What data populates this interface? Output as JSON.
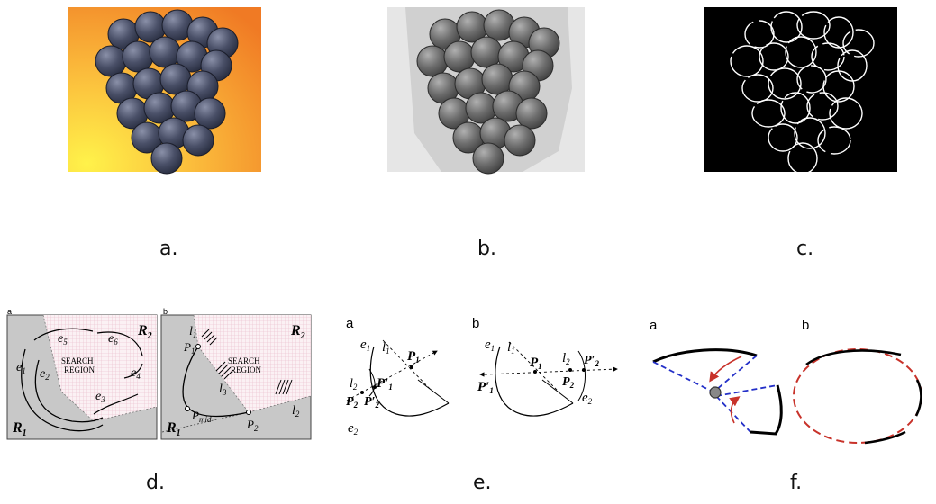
{
  "captions": {
    "a": "a.",
    "b": "b.",
    "c": "c.",
    "d": "d.",
    "e": "e.",
    "f": "f."
  },
  "panel_d": {
    "left": {
      "letter": "a",
      "region_line1": "SEARCH",
      "region_line2": "REGION",
      "r1": "R",
      "r1_sub": "1",
      "r2": "R",
      "r2_sub": "2",
      "edges": [
        {
          "t": "e",
          "s": "1"
        },
        {
          "t": "e",
          "s": "2"
        },
        {
          "t": "e",
          "s": "3"
        },
        {
          "t": "e",
          "s": "4"
        },
        {
          "t": "e",
          "s": "5"
        },
        {
          "t": "e",
          "s": "6"
        }
      ]
    },
    "right": {
      "letter": "b",
      "region_line1": "SEARCH",
      "region_line2": "REGION",
      "r1": "R",
      "r1_sub": "1",
      "r2": "R",
      "r2_sub": "2",
      "p1": "P",
      "p1_sub": "1",
      "p2": "P",
      "p2_sub": "2",
      "pmid": "P",
      "pmid_sub": "mid",
      "l1": "l",
      "l1_sub": "1",
      "l2": "l",
      "l2_sub": "2",
      "l3": "l",
      "l3_sub": "3"
    }
  },
  "panel_e": {
    "left": {
      "letter": "a",
      "e1": "e",
      "e1_sub": "1",
      "l1": "l",
      "l1_sub": "1",
      "p1": "P",
      "p1_sub": "1",
      "p1p": "P′",
      "p1p_sub": "1",
      "l2": "l",
      "l2_sub": "2",
      "p2": "P",
      "p2_sub": "2",
      "p2p": "P′",
      "p2p_sub": "2",
      "e2": "e",
      "e2_sub": "2"
    },
    "right": {
      "letter": "b",
      "e1": "e",
      "e1_sub": "1",
      "l1": "l",
      "l1_sub": "1",
      "p1": "P",
      "p1_sub": "1",
      "p1p": "P′",
      "p1p_sub": "1",
      "l2": "l",
      "l2_sub": "2",
      "p2": "P",
      "p2_sub": "2",
      "p2p": "P′",
      "p2p_sub": "2",
      "e2": "e",
      "e2_sub": "2"
    }
  },
  "panel_f": {
    "left_letter": "a",
    "right_letter": "b"
  },
  "colors": {
    "orange_bg": "#f6a53a",
    "grey_region": "#c8c8c8",
    "grid": "#e8b8c8",
    "red": "#c8322a",
    "blue": "#2430c8"
  }
}
